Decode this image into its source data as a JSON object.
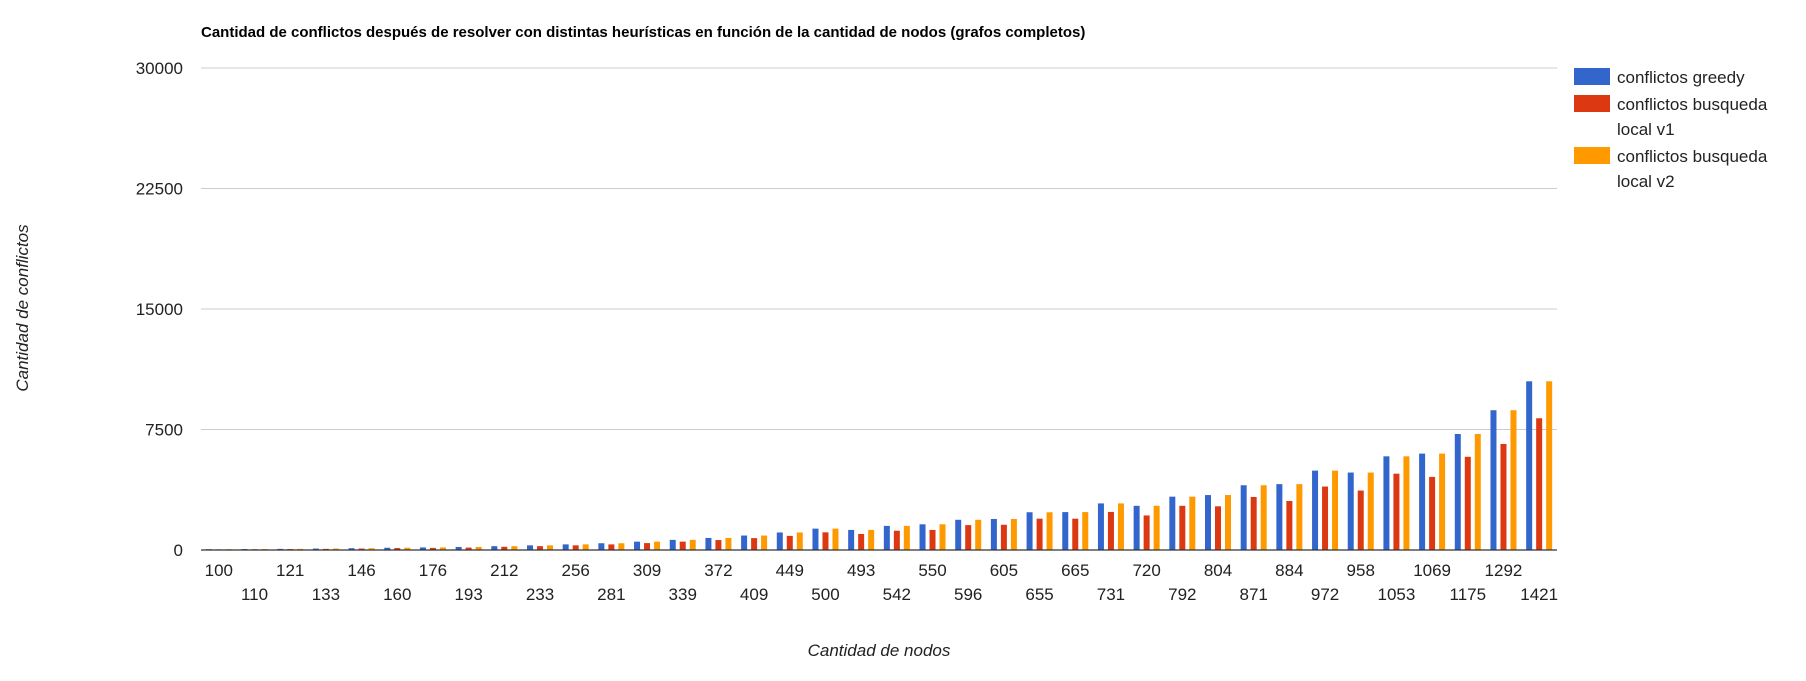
{
  "chart_data": {
    "type": "bar",
    "title": "Cantidad de conflictos después de resolver con distintas heurísticas en función de la cantidad de nodos (grafos completos)",
    "xlabel": "Cantidad de nodos",
    "ylabel": "Cantidad de conflictos",
    "ylim": [
      0,
      30000
    ],
    "yticks": [
      "0",
      "7500",
      "15000",
      "22500",
      "30000"
    ],
    "ytick_values": [
      0,
      7500,
      15000,
      22500,
      30000
    ],
    "grid": true,
    "legend_position": "right",
    "categories": [
      "100",
      "110",
      "121",
      "133",
      "146",
      "160",
      "176",
      "193",
      "212",
      "233",
      "256",
      "281",
      "309",
      "339",
      "372",
      "409",
      "449",
      "500",
      "493",
      "542",
      "550",
      "596",
      "605",
      "655",
      "665",
      "731",
      "720",
      "792",
      "804",
      "871",
      "884",
      "972",
      "958",
      "1053",
      "1069",
      "1175",
      "1292",
      "1421"
    ],
    "series": [
      {
        "name": "conflictos greedy",
        "color": "#3366cc",
        "values": [
          50,
          60,
          70,
          90,
          110,
          140,
          160,
          190,
          240,
          290,
          350,
          420,
          520,
          630,
          750,
          900,
          1090,
          1330,
          1250,
          1500,
          1600,
          1880,
          1930,
          2350,
          2360,
          2900,
          2750,
          3320,
          3420,
          4030,
          4100,
          4940,
          4820,
          5830,
          6000,
          7220,
          8700,
          10500
        ]
      },
      {
        "name": "conflictos busqueda local v1",
        "color": "#dc3912",
        "values": [
          40,
          50,
          60,
          70,
          90,
          120,
          130,
          150,
          200,
          240,
          290,
          350,
          430,
          520,
          620,
          740,
          880,
          1100,
          1000,
          1200,
          1250,
          1550,
          1570,
          1950,
          1950,
          2370,
          2150,
          2750,
          2720,
          3300,
          3050,
          3950,
          3700,
          4750,
          4550,
          5800,
          6600,
          8200
        ]
      },
      {
        "name": "conflictos busqueda local v2",
        "color": "#ff9900",
        "values": [
          50,
          60,
          70,
          90,
          110,
          140,
          160,
          190,
          240,
          290,
          350,
          420,
          520,
          630,
          750,
          900,
          1090,
          1330,
          1250,
          1500,
          1600,
          1880,
          1930,
          2350,
          2360,
          2900,
          2750,
          3320,
          3420,
          4030,
          4100,
          4940,
          4820,
          5830,
          6000,
          7220,
          8700,
          10500
        ]
      }
    ]
  }
}
